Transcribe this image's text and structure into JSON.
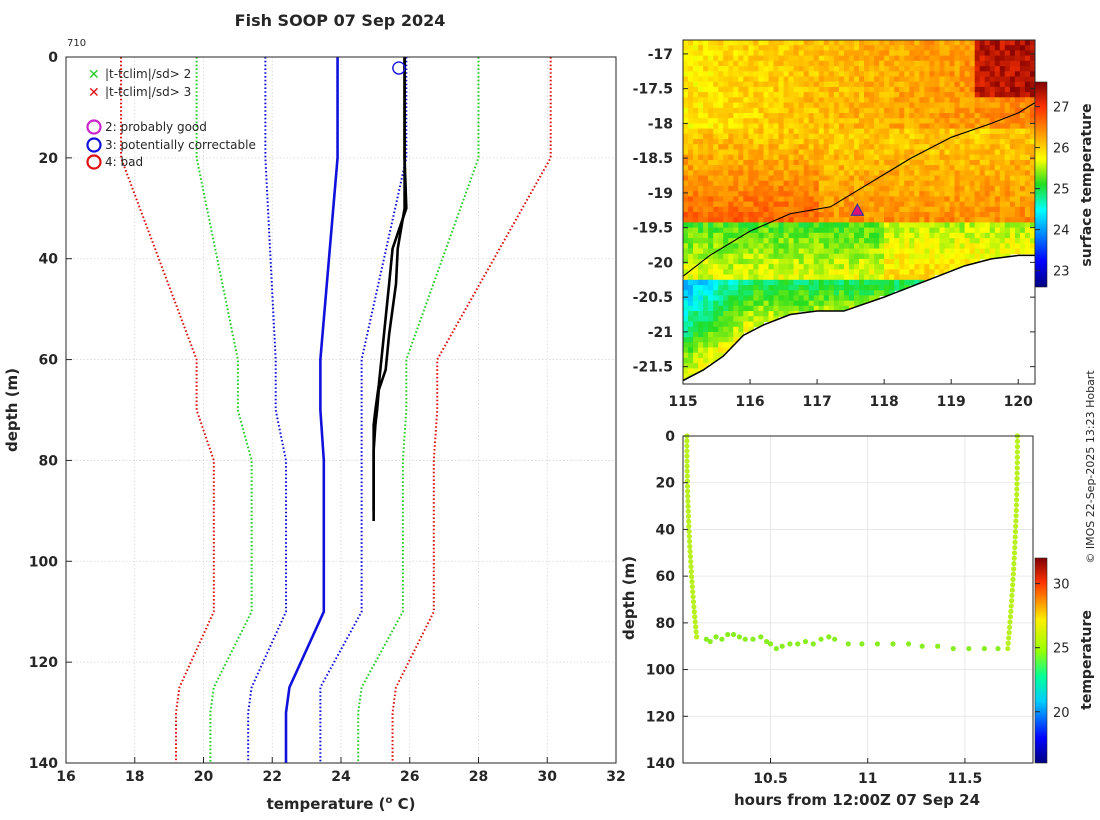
{
  "title": "Fish SOOP 07 Sep 2024",
  "profile_id": "710",
  "credit": "© IMOS 22-Sep-2025 13:23 Hobart",
  "legend": {
    "cross_items": [
      {
        "label": "|t-tclim|/sd> 2",
        "color": "#22cc22"
      },
      {
        "label": "|t-tclim|/sd> 3",
        "color": "#dd1111"
      }
    ],
    "flag_items": [
      {
        "label": "2: probably good",
        "color": "#cc22cc"
      },
      {
        "label": "3: potentially correctable",
        "color": "#1111dd"
      },
      {
        "label": "4: bad",
        "color": "#dd1111"
      }
    ]
  },
  "chart_data": [
    {
      "id": "profile",
      "type": "line",
      "xlabel": "temperature (",
      "xlabel_sup": "o",
      "xlabel_end": " C)",
      "ylabel": "depth (m)",
      "xlim": [
        16,
        32
      ],
      "ylim": [
        0,
        140
      ],
      "xticks": [
        "16",
        "18",
        "20",
        "22",
        "24",
        "26",
        "28",
        "30",
        "32"
      ],
      "yticks": [
        "0",
        "20",
        "40",
        "60",
        "80",
        "100",
        "120",
        "140"
      ],
      "climatology_depth": [
        0,
        20,
        60,
        70,
        80,
        110,
        125,
        130,
        140
      ],
      "series": [
        {
          "name": "clim-3sd-low",
          "style": "dotted",
          "color": "#dd1111",
          "x": [
            17.6,
            17.6,
            19.8,
            19.8,
            20.3,
            20.3,
            19.3,
            19.2,
            19.2
          ]
        },
        {
          "name": "clim-2sd-low",
          "style": "dotted",
          "color": "#22cc22",
          "x": [
            19.8,
            19.8,
            21.0,
            21.0,
            21.4,
            21.4,
            20.3,
            20.2,
            20.2
          ]
        },
        {
          "name": "clim-1sd-low",
          "style": "dotted",
          "color": "#1111dd",
          "x": [
            21.8,
            21.8,
            22.1,
            22.1,
            22.4,
            22.4,
            21.4,
            21.3,
            21.3
          ]
        },
        {
          "name": "climatology-mean",
          "style": "solid",
          "color": "#1111dd",
          "x": [
            23.9,
            23.9,
            23.4,
            23.4,
            23.5,
            23.5,
            22.5,
            22.4,
            22.4
          ]
        },
        {
          "name": "clim-1sd-high",
          "style": "dotted",
          "color": "#1111dd",
          "x": [
            25.9,
            25.9,
            24.6,
            24.6,
            24.6,
            24.6,
            23.4,
            23.4,
            23.4
          ]
        },
        {
          "name": "clim-2sd-high",
          "style": "dotted",
          "color": "#22cc22",
          "x": [
            28.0,
            28.0,
            25.9,
            25.9,
            25.8,
            25.8,
            24.6,
            24.5,
            24.5
          ]
        },
        {
          "name": "clim-3sd-high",
          "style": "dotted",
          "color": "#dd1111",
          "x": [
            30.1,
            30.1,
            26.8,
            26.8,
            26.7,
            26.7,
            25.6,
            25.5,
            25.5
          ]
        }
      ],
      "profiles": [
        {
          "name": "measured-down",
          "color": "#000000",
          "depth": [
            0,
            10,
            20,
            30,
            34,
            38,
            45,
            55,
            65,
            70,
            73,
            78,
            85,
            92
          ],
          "x": [
            25.85,
            25.85,
            25.85,
            25.9,
            25.7,
            25.5,
            25.4,
            25.25,
            25.1,
            25.0,
            24.95,
            24.95,
            24.95,
            24.95
          ]
        },
        {
          "name": "measured-up",
          "color": "#000000",
          "depth": [
            0,
            20,
            30,
            34,
            38,
            45,
            55,
            62,
            66,
            70,
            73,
            78,
            85,
            90
          ],
          "x": [
            25.85,
            25.85,
            25.85,
            25.75,
            25.65,
            25.6,
            25.4,
            25.3,
            25.1,
            25.05,
            25.0,
            24.95,
            24.95,
            24.95
          ]
        }
      ],
      "flag_marker": {
        "flag": "3: potentially correctable",
        "x": 25.8,
        "depth": 1.2
      }
    },
    {
      "id": "map",
      "type": "heatmap",
      "colorbar_label": "surface temperature",
      "xlim": [
        115,
        120.25
      ],
      "ylim": [
        -21.75,
        -16.8
      ],
      "xticks": [
        "115",
        "116",
        "117",
        "118",
        "119",
        "120"
      ],
      "yticks": [
        "-17",
        "-17.5",
        "-18",
        "-18.5",
        "-19",
        "-19.5",
        "-20",
        "-20.5",
        "-21",
        "-21.5"
      ],
      "colorbar_ticks": [
        "23",
        "24",
        "25",
        "26",
        "27"
      ],
      "colorbar_range": [
        22.6,
        27.6
      ],
      "station": {
        "lon": 117.6,
        "lat": -19.25
      },
      "isobath": {
        "lon": [
          115,
          115.4,
          116,
          116.6,
          117.2,
          117.8,
          118.4,
          119,
          119.6,
          120,
          120.25
        ],
        "lat": [
          -20.2,
          -19.9,
          -19.55,
          -19.3,
          -19.2,
          -18.85,
          -18.5,
          -18.2,
          -18.0,
          -17.85,
          -17.7
        ]
      },
      "coast": {
        "lon": [
          115,
          115.3,
          115.6,
          115.9,
          116.2,
          116.6,
          117.0,
          117.4,
          117.7,
          118.0,
          118.4,
          118.8,
          119.2,
          119.6,
          120.0,
          120.25
        ],
        "lat": [
          -21.7,
          -21.55,
          -21.35,
          -21.05,
          -20.9,
          -20.75,
          -20.7,
          -20.7,
          -20.6,
          -20.5,
          -20.35,
          -20.2,
          -20.05,
          -19.95,
          -19.9,
          -19.9
        ]
      }
    },
    {
      "id": "timeseries",
      "type": "scatter",
      "xlabel": "hours from 12:00Z 07 Sep 24",
      "ylabel": "depth (m)",
      "colorbar_label": "temperature",
      "xlim": [
        10.05,
        11.85
      ],
      "ylim": [
        0,
        140
      ],
      "xticks": [
        "10.5",
        "11",
        "11.5"
      ],
      "xtick_values": [
        10.5,
        11,
        11.5
      ],
      "yticks": [
        "0",
        "20",
        "40",
        "60",
        "80",
        "100",
        "120",
        "140"
      ],
      "colorbar_ticks": [
        "20",
        "25",
        "30"
      ],
      "colorbar_range": [
        16,
        32
      ],
      "descent": {
        "t": [
          10.07,
          10.12
        ],
        "depth": [
          0,
          86
        ]
      },
      "ascent": {
        "t": [
          11.77,
          11.72
        ],
        "depth": [
          0,
          91
        ]
      },
      "points": [
        {
          "t": 10.17,
          "depth": 87
        },
        {
          "t": 10.19,
          "depth": 88
        },
        {
          "t": 10.22,
          "depth": 86
        },
        {
          "t": 10.25,
          "depth": 87
        },
        {
          "t": 10.28,
          "depth": 85
        },
        {
          "t": 10.31,
          "depth": 85
        },
        {
          "t": 10.34,
          "depth": 86
        },
        {
          "t": 10.37,
          "depth": 87
        },
        {
          "t": 10.41,
          "depth": 87
        },
        {
          "t": 10.45,
          "depth": 86
        },
        {
          "t": 10.48,
          "depth": 88
        },
        {
          "t": 10.5,
          "depth": 89
        },
        {
          "t": 10.53,
          "depth": 91
        },
        {
          "t": 10.56,
          "depth": 90
        },
        {
          "t": 10.6,
          "depth": 89
        },
        {
          "t": 10.64,
          "depth": 89
        },
        {
          "t": 10.68,
          "depth": 88
        },
        {
          "t": 10.72,
          "depth": 89
        },
        {
          "t": 10.76,
          "depth": 87
        },
        {
          "t": 10.8,
          "depth": 86
        },
        {
          "t": 10.83,
          "depth": 87
        },
        {
          "t": 10.9,
          "depth": 89
        },
        {
          "t": 10.97,
          "depth": 89
        },
        {
          "t": 11.05,
          "depth": 89
        },
        {
          "t": 11.13,
          "depth": 89
        },
        {
          "t": 11.21,
          "depth": 89
        },
        {
          "t": 11.28,
          "depth": 90
        },
        {
          "t": 11.36,
          "depth": 90
        },
        {
          "t": 11.44,
          "depth": 91
        },
        {
          "t": 11.52,
          "depth": 91
        },
        {
          "t": 11.6,
          "depth": 91
        },
        {
          "t": 11.67,
          "depth": 91
        }
      ]
    }
  ]
}
